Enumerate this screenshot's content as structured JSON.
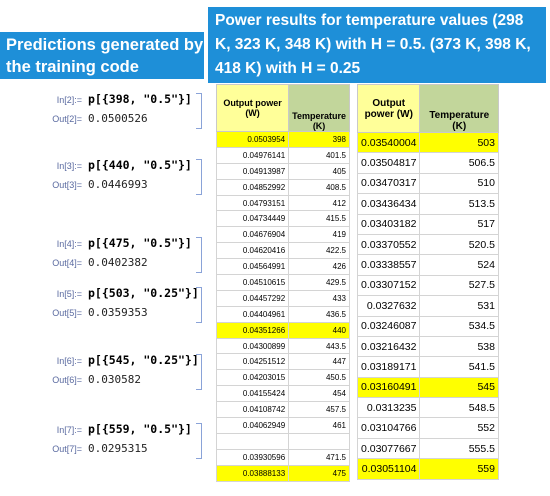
{
  "banner_left": "Predictions generated by the training code",
  "banner_top": "Power results for temperature values (298 K, 323 K, 348 K) with H = 0.5. (373 K, 398 K, 418 K) with H = 0.25",
  "notebook": [
    {
      "in_label": "In[2]:=",
      "code": "p[{398, \"0.5\"}]",
      "out_label": "Out[2]=",
      "output": "0.0500526"
    },
    {
      "in_label": "In[3]:=",
      "code": "p[{440, \"0.5\"}]",
      "out_label": "Out[3]=",
      "output": "0.0446993"
    },
    {
      "in_label": "In[4]:=",
      "code": "p[{475, \"0.5\"}]",
      "out_label": "Out[4]=",
      "output": "0.0402382"
    },
    {
      "in_label": "In[5]:=",
      "code": "p[{503, \"0.25\"}]",
      "out_label": "Out[5]=",
      "output": "0.0359353"
    },
    {
      "in_label": "In[6]:=",
      "code": "p[{545, \"0.25\"}]",
      "out_label": "Out[6]=",
      "output": "0.030582"
    },
    {
      "in_label": "In[7]:=",
      "code": "p[{559, \"0.5\"}]",
      "out_label": "Out[7]=",
      "output": "0.0295315"
    }
  ],
  "table1": {
    "header_power": "Output power (W)",
    "header_temp": "Temperature (K)",
    "rows": [
      {
        "power": "0.0503954",
        "temp": "398",
        "highlight": true
      },
      {
        "power": "0.04976141",
        "temp": "401.5",
        "highlight": false
      },
      {
        "power": "0.04913987",
        "temp": "405",
        "highlight": false
      },
      {
        "power": "0.04852992",
        "temp": "408.5",
        "highlight": false
      },
      {
        "power": "0.04793151",
        "temp": "412",
        "highlight": false
      },
      {
        "power": "0.04734449",
        "temp": "415.5",
        "highlight": false
      },
      {
        "power": "0.04676904",
        "temp": "419",
        "highlight": false
      },
      {
        "power": "0.04620416",
        "temp": "422.5",
        "highlight": false
      },
      {
        "power": "0.04564991",
        "temp": "426",
        "highlight": false
      },
      {
        "power": "0.04510615",
        "temp": "429.5",
        "highlight": false
      },
      {
        "power": "0.04457292",
        "temp": "433",
        "highlight": false
      },
      {
        "power": "0.04404961",
        "temp": "436.5",
        "highlight": false
      },
      {
        "power": "0.04351266",
        "temp": "440",
        "highlight": true
      },
      {
        "power": "0.04300899",
        "temp": "443.5",
        "highlight": false
      },
      {
        "power": "0.04251512",
        "temp": "447",
        "highlight": false
      },
      {
        "power": "0.04203015",
        "temp": "450.5",
        "highlight": false
      },
      {
        "power": "0.04155424",
        "temp": "454",
        "highlight": false
      },
      {
        "power": "0.04108742",
        "temp": "457.5",
        "highlight": false
      },
      {
        "power": "0.04062949",
        "temp": "461",
        "highlight": false
      },
      {
        "power": "",
        "temp": "",
        "highlight": false
      },
      {
        "power": "0.03930596",
        "temp": "471.5",
        "highlight": false
      },
      {
        "power": "0.03888133",
        "temp": "475",
        "highlight": true
      }
    ]
  },
  "table2": {
    "header_power": "Output power (W)",
    "header_temp": "Temperature (K)",
    "rows": [
      {
        "power": "0.03540004",
        "temp": "503",
        "highlight": true
      },
      {
        "power": "0.03504817",
        "temp": "506.5",
        "highlight": false
      },
      {
        "power": "0.03470317",
        "temp": "510",
        "highlight": false
      },
      {
        "power": "0.03436434",
        "temp": "513.5",
        "highlight": false
      },
      {
        "power": "0.03403182",
        "temp": "517",
        "highlight": false
      },
      {
        "power": "0.03370552",
        "temp": "520.5",
        "highlight": false
      },
      {
        "power": "0.03338557",
        "temp": "524",
        "highlight": false
      },
      {
        "power": "0.03307152",
        "temp": "527.5",
        "highlight": false
      },
      {
        "power": "0.0327632",
        "temp": "531",
        "highlight": false
      },
      {
        "power": "0.03246087",
        "temp": "534.5",
        "highlight": false
      },
      {
        "power": "0.03216432",
        "temp": "538",
        "highlight": false
      },
      {
        "power": "0.03189171",
        "temp": "541.5",
        "highlight": false
      },
      {
        "power": "0.03160491",
        "temp": "545",
        "highlight": true
      },
      {
        "power": "0.0313235",
        "temp": "548.5",
        "highlight": false
      },
      {
        "power": "0.03104766",
        "temp": "552",
        "highlight": false
      },
      {
        "power": "0.03077667",
        "temp": "555.5",
        "highlight": false
      },
      {
        "power": "0.03051104",
        "temp": "559",
        "highlight": true
      }
    ]
  }
}
